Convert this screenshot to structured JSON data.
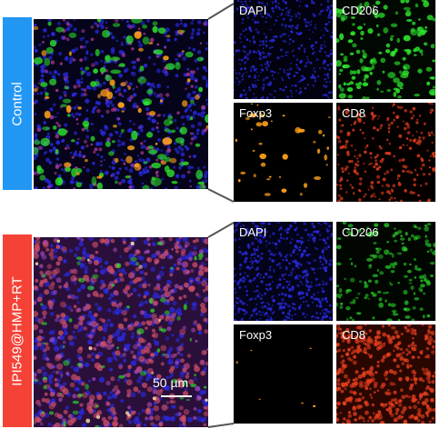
{
  "groups": [
    {
      "label": "Control",
      "label_color": "#2196f3",
      "panels": {
        "dapi": "DAPI",
        "cd206": "CD206",
        "foxp3": "Foxp3",
        "cd8": "CD8"
      }
    },
    {
      "label": "IPI549@HMP+RT",
      "label_color": "#f44336",
      "panels": {
        "dapi": "DAPI",
        "cd206": "CD206",
        "foxp3": "Foxp3",
        "cd8": "CD8"
      }
    }
  ],
  "scale_bar": {
    "label": "50 µm"
  },
  "colors": {
    "dapi": "#2a2ae0",
    "cd206": "#2ee82e",
    "foxp3": "#ffa21a",
    "cd8": "#e8401e",
    "callout_line": "#555555"
  }
}
